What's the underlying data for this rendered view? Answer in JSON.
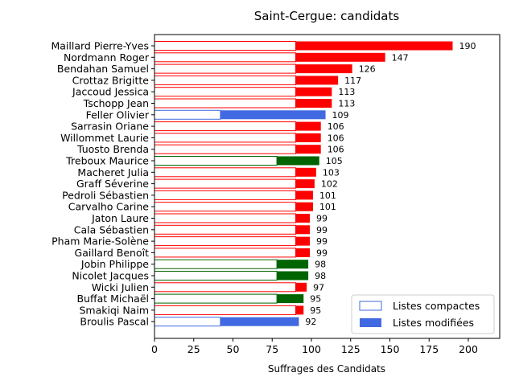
{
  "chart_data": {
    "type": "bar",
    "orientation": "horizontal",
    "title": "Saint-Cergue: candidats",
    "xlabel": "Suffrages des Candidats",
    "ylabel": "",
    "xlim": [
      0,
      220
    ],
    "xticks": [
      0,
      25,
      50,
      75,
      100,
      125,
      150,
      175,
      200
    ],
    "grid": false,
    "legend_position": "lower-right",
    "legend": [
      {
        "label": "Listes compactes",
        "style": "outline",
        "color": "#4169e1"
      },
      {
        "label": "Listes modifiées",
        "style": "filled",
        "color": "#4169e1"
      }
    ],
    "party_colors": {
      "red": "#ff0000",
      "blue": "#4169e1",
      "green": "#006400"
    },
    "categories": [
      {
        "name": "Maillard Pierre-Yves",
        "total": 190,
        "compact": 90,
        "color": "red"
      },
      {
        "name": "Nordmann Roger",
        "total": 147,
        "compact": 90,
        "color": "red"
      },
      {
        "name": "Bendahan Samuel",
        "total": 126,
        "compact": 90,
        "color": "red"
      },
      {
        "name": "Crottaz Brigitte",
        "total": 117,
        "compact": 90,
        "color": "red"
      },
      {
        "name": "Jaccoud Jessica",
        "total": 113,
        "compact": 90,
        "color": "red"
      },
      {
        "name": "Tschopp Jean",
        "total": 113,
        "compact": 90,
        "color": "red"
      },
      {
        "name": "Feller Olivier",
        "total": 109,
        "compact": 42,
        "color": "blue"
      },
      {
        "name": "Sarrasin Oriane",
        "total": 106,
        "compact": 90,
        "color": "red"
      },
      {
        "name": "Willommet Laurie",
        "total": 106,
        "compact": 90,
        "color": "red"
      },
      {
        "name": "Tuosto Brenda",
        "total": 106,
        "compact": 90,
        "color": "red"
      },
      {
        "name": "Treboux Maurice",
        "total": 105,
        "compact": 78,
        "color": "green"
      },
      {
        "name": "Macheret Julia",
        "total": 103,
        "compact": 90,
        "color": "red"
      },
      {
        "name": "Graff Séverine",
        "total": 102,
        "compact": 90,
        "color": "red"
      },
      {
        "name": "Pedroli Sébastien",
        "total": 101,
        "compact": 90,
        "color": "red"
      },
      {
        "name": "Carvalho Carine",
        "total": 101,
        "compact": 90,
        "color": "red"
      },
      {
        "name": "Jaton Laure",
        "total": 99,
        "compact": 90,
        "color": "red"
      },
      {
        "name": "Cala Sébastien",
        "total": 99,
        "compact": 90,
        "color": "red"
      },
      {
        "name": "Pham Marie-Solène",
        "total": 99,
        "compact": 90,
        "color": "red"
      },
      {
        "name": "Gaillard Benoît",
        "total": 99,
        "compact": 90,
        "color": "red"
      },
      {
        "name": "Jobin Philippe",
        "total": 98,
        "compact": 78,
        "color": "green"
      },
      {
        "name": "Nicolet Jacques",
        "total": 98,
        "compact": 78,
        "color": "green"
      },
      {
        "name": "Wicki Julien",
        "total": 97,
        "compact": 90,
        "color": "red"
      },
      {
        "name": "Buffat Michaël",
        "total": 95,
        "compact": 78,
        "color": "green"
      },
      {
        "name": "Smakiqi Naim",
        "total": 95,
        "compact": 90,
        "color": "red"
      },
      {
        "name": "Broulis Pascal",
        "total": 92,
        "compact": 42,
        "color": "blue"
      }
    ]
  }
}
